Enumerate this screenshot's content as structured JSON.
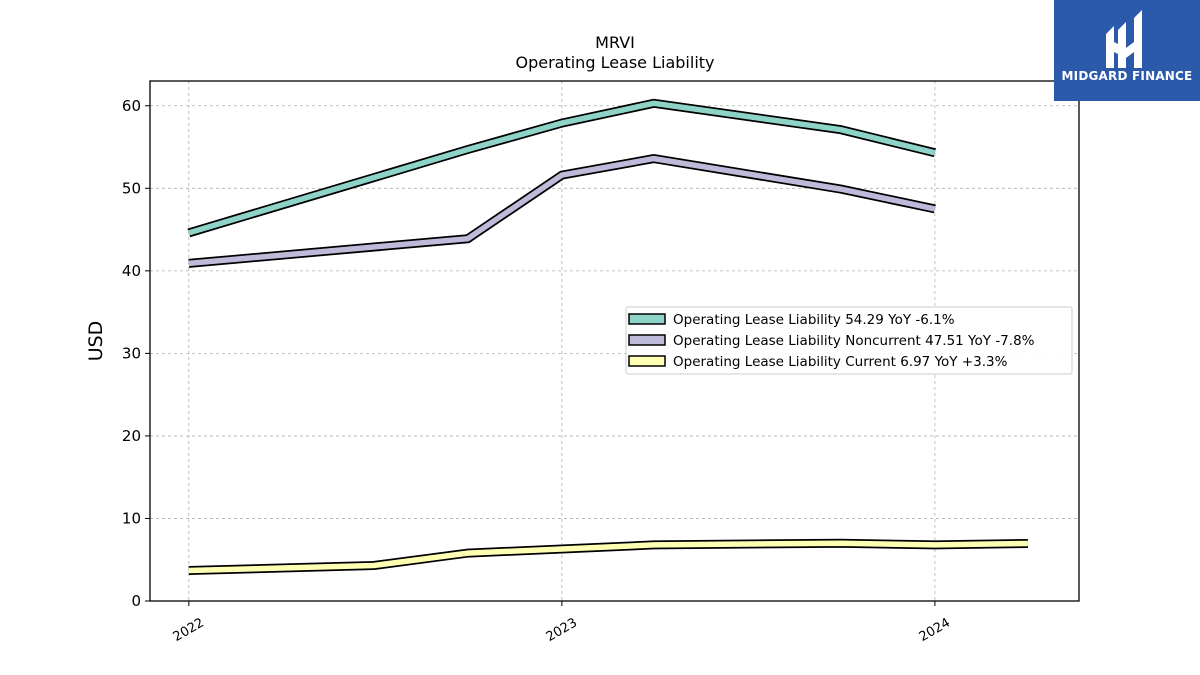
{
  "logo": {
    "name": "MIDGARD FINANCE",
    "icon": "midgard-m-logo-icon",
    "color": "#2b5aab"
  },
  "chart_data": {
    "type": "line",
    "title": "MRVI",
    "subtitle": "Operating Lease Liability",
    "ylabel": "USD",
    "xlabel": "",
    "ylim": [
      0,
      63
    ],
    "yticks": [
      0,
      10,
      20,
      30,
      40,
      50,
      60
    ],
    "xlim": [
      "2021-11-24",
      "2024-05-21"
    ],
    "xticks": [
      {
        "date": "2022-01-01",
        "label": "2022"
      },
      {
        "date": "2023-01-01",
        "label": "2023"
      },
      {
        "date": "2024-01-01",
        "label": "2024"
      }
    ],
    "grid": true,
    "legend_position": "center-right",
    "series": [
      {
        "name": "Operating Lease Liability",
        "legend_label": "Operating Lease Liability  54.29 YoY -6.1%",
        "color": "#8dd3c7",
        "points": [
          {
            "x": "2022-01-01",
            "y": 44.6
          },
          {
            "x": "2022-10-01",
            "y": 54.7
          },
          {
            "x": "2023-01-01",
            "y": 57.9
          },
          {
            "x": "2023-04-01",
            "y": 60.3
          },
          {
            "x": "2023-10-01",
            "y": 57.1
          },
          {
            "x": "2024-01-01",
            "y": 54.3
          }
        ]
      },
      {
        "name": "Operating Lease Liability Noncurrent",
        "legend_label": "Operating Lease Liability Noncurrent  47.51 YoY -7.8%",
        "color": "#bebada",
        "points": [
          {
            "x": "2022-01-01",
            "y": 40.9
          },
          {
            "x": "2022-10-01",
            "y": 43.9
          },
          {
            "x": "2023-01-01",
            "y": 51.6
          },
          {
            "x": "2023-04-01",
            "y": 53.6
          },
          {
            "x": "2023-10-01",
            "y": 49.9
          },
          {
            "x": "2024-01-01",
            "y": 47.5
          }
        ]
      },
      {
        "name": "Operating Lease Liability Current",
        "legend_label": "Operating Lease Liability Current  6.97 YoY +3.3%",
        "color": "#ffffb3",
        "points": [
          {
            "x": "2022-01-01",
            "y": 3.7
          },
          {
            "x": "2022-07-01",
            "y": 4.3
          },
          {
            "x": "2022-10-01",
            "y": 5.8
          },
          {
            "x": "2023-01-01",
            "y": 6.3
          },
          {
            "x": "2023-04-01",
            "y": 6.8
          },
          {
            "x": "2023-10-01",
            "y": 7.0
          },
          {
            "x": "2024-01-01",
            "y": 6.8
          },
          {
            "x": "2024-04-01",
            "y": 6.97
          }
        ]
      }
    ]
  }
}
